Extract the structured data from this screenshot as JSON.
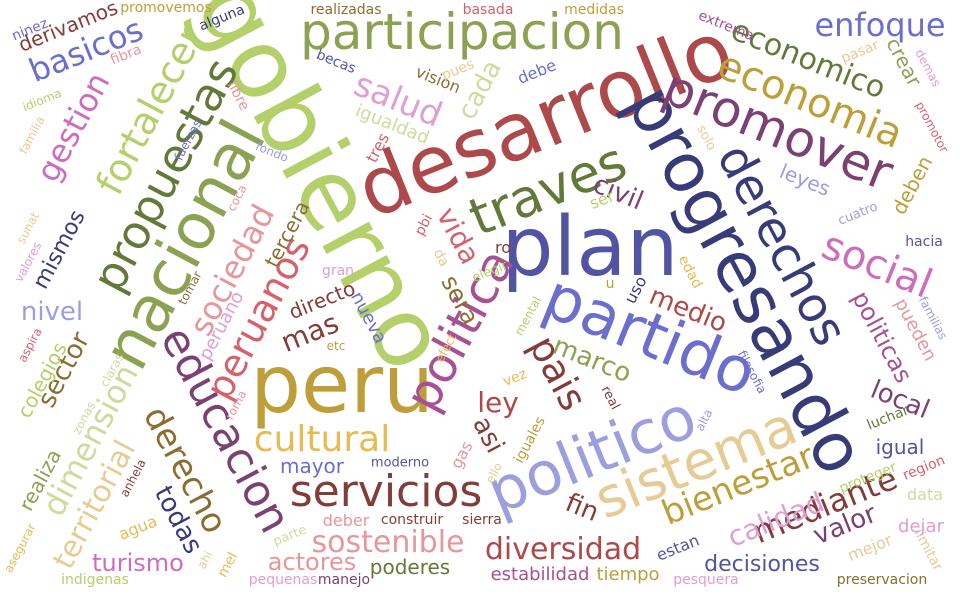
{
  "word_cloud": {
    "words": [
      {
        "text": "gobierno",
        "color": "#b5cf6b"
      },
      {
        "text": "desarrollo",
        "color": "#ad494a"
      },
      {
        "text": "plan",
        "color": "#5254a3"
      },
      {
        "text": "peru",
        "color": "#bd9e39"
      },
      {
        "text": "progresando",
        "color": "#393b79"
      },
      {
        "text": "nacional",
        "color": "#8ca252"
      },
      {
        "text": "politico",
        "color": "#9c9ede"
      },
      {
        "text": "partido",
        "color": "#6b6ecf"
      },
      {
        "text": "participacion",
        "color": "#8ca252"
      },
      {
        "text": "sistema",
        "color": "#e7cb94"
      },
      {
        "text": "derechos",
        "color": "#393b79"
      },
      {
        "text": "traves",
        "color": "#637939"
      },
      {
        "text": "promover",
        "color": "#7b4173"
      },
      {
        "text": "educacion",
        "color": "#7b4173"
      },
      {
        "text": "politica",
        "color": "#a55194"
      },
      {
        "text": "servicios",
        "color": "#843c39"
      },
      {
        "text": "propuestas",
        "color": "#637939"
      },
      {
        "text": "economia",
        "color": "#bd9e39"
      },
      {
        "text": "social",
        "color": "#ce6dbd"
      },
      {
        "text": "economico",
        "color": "#637939"
      },
      {
        "text": "fortalecer",
        "color": "#b5cf6b"
      },
      {
        "text": "cultural",
        "color": "#e7ba52"
      },
      {
        "text": "sociedad",
        "color": "#e7969c"
      },
      {
        "text": "derecho",
        "color": "#8c6d31"
      },
      {
        "text": "enfoque",
        "color": "#6b6ecf"
      },
      {
        "text": "bienestar",
        "color": "#bd9e39"
      },
      {
        "text": "peruanos",
        "color": "#d6616b"
      },
      {
        "text": "pais",
        "color": "#843c39"
      },
      {
        "text": "diversidad",
        "color": "#ad494a"
      },
      {
        "text": "sostenible",
        "color": "#e7969c"
      },
      {
        "text": "dimension",
        "color": "#cedb9c"
      },
      {
        "text": "salud",
        "color": "#de9ed6"
      },
      {
        "text": "mediante",
        "color": "#843c39"
      },
      {
        "text": "basicos",
        "color": "#6b6ecf"
      },
      {
        "text": "gestion",
        "color": "#ce6dbd"
      },
      {
        "text": "territorial",
        "color": "#e7cb94"
      },
      {
        "text": "vida",
        "color": "#d6616b"
      },
      {
        "text": "calidad",
        "color": "#de9ed6"
      },
      {
        "text": "medio",
        "color": "#ad494a"
      },
      {
        "text": "politicas",
        "color": "#a55194"
      },
      {
        "text": "marco",
        "color": "#8ca252"
      },
      {
        "text": "local",
        "color": "#7b4173"
      },
      {
        "text": "cada",
        "color": "#cedb9c"
      },
      {
        "text": "valor",
        "color": "#7b4173"
      },
      {
        "text": "civil",
        "color": "#7b4173"
      },
      {
        "text": "sector",
        "color": "#8c6d31"
      },
      {
        "text": "decisiones",
        "color": "#5254a3"
      },
      {
        "text": "mas",
        "color": "#843c39"
      },
      {
        "text": "ley",
        "color": "#ad494a"
      },
      {
        "text": "todas",
        "color": "#393b79"
      },
      {
        "text": "nivel",
        "color": "#9c9ede"
      },
      {
        "text": "actores",
        "color": "#e7969c"
      },
      {
        "text": "turismo",
        "color": "#ce6dbd"
      },
      {
        "text": "poderes",
        "color": "#637939"
      },
      {
        "text": "mismos",
        "color": "#393b79"
      },
      {
        "text": "sera",
        "color": "#8c6d31"
      },
      {
        "text": "asi",
        "color": "#843c39"
      },
      {
        "text": "mayor",
        "color": "#6b6ecf"
      },
      {
        "text": "estabilidad",
        "color": "#a55194"
      },
      {
        "text": "tiempo",
        "color": "#bd9e39"
      },
      {
        "text": "igual",
        "color": "#5254a3"
      },
      {
        "text": "fin",
        "color": "#843c39"
      },
      {
        "text": "pueden",
        "color": "#e7969c"
      },
      {
        "text": "leyes",
        "color": "#9c9ede"
      },
      {
        "text": "deben",
        "color": "#bd9e39"
      },
      {
        "text": "directo",
        "color": "#843c39"
      },
      {
        "text": "tercera",
        "color": "#8c6d31"
      },
      {
        "text": "peruano",
        "color": "#de9ed6"
      },
      {
        "text": "colegios",
        "color": "#b5cf6b"
      },
      {
        "text": "realiza",
        "color": "#8ca252"
      },
      {
        "text": "nueva",
        "color": "#6b6ecf"
      },
      {
        "text": "crear",
        "color": "#8ca252"
      },
      {
        "text": "derivamos",
        "color": "#843c39"
      },
      {
        "text": "deber",
        "color": "#e7969c"
      },
      {
        "text": "construir",
        "color": "#843c39"
      },
      {
        "text": "sierra",
        "color": "#843c39"
      },
      {
        "text": "manejo",
        "color": "#7b4173"
      },
      {
        "text": "pequenas",
        "color": "#de9ed6"
      },
      {
        "text": "indigenas",
        "color": "#b5cf6b"
      },
      {
        "text": "pesquera",
        "color": "#de9ed6"
      },
      {
        "text": "preservacion",
        "color": "#8c6d31"
      },
      {
        "text": "estan",
        "color": "#5254a3"
      },
      {
        "text": "mejor",
        "color": "#e7cb94"
      },
      {
        "text": "limitar",
        "color": "#e7cb94"
      },
      {
        "text": "dejar",
        "color": "#de9ed6"
      },
      {
        "text": "data",
        "color": "#cedb9c"
      },
      {
        "text": "region",
        "color": "#d6616b"
      },
      {
        "text": "proteger",
        "color": "#b5cf6b"
      },
      {
        "text": "luchar",
        "color": "#637939"
      },
      {
        "text": "alta",
        "color": "#9c9ede"
      },
      {
        "text": "filosofia",
        "color": "#6b6ecf"
      },
      {
        "text": "real",
        "color": "#843c39"
      },
      {
        "text": "iguales",
        "color": "#bd9e39"
      },
      {
        "text": "ello",
        "color": "#e7cb94"
      },
      {
        "text": "gas",
        "color": "#e7969c"
      },
      {
        "text": "agua",
        "color": "#e7ba52"
      },
      {
        "text": "anhela",
        "color": "#843c39"
      },
      {
        "text": "zonas",
        "color": "#cedb9c"
      },
      {
        "text": "claras",
        "color": "#cedb9c"
      },
      {
        "text": "aspira",
        "color": "#d6616b"
      },
      {
        "text": "valores",
        "color": "#de9ed6"
      },
      {
        "text": "sunat",
        "color": "#e7cb94"
      },
      {
        "text": "tomar",
        "color": "#8c6d31"
      },
      {
        "text": "coca",
        "color": "#e7969c"
      },
      {
        "text": "fuerzas",
        "color": "#6b6ecf"
      },
      {
        "text": "fondo",
        "color": "#9c9ede"
      },
      {
        "text": "familia",
        "color": "#e7cb94"
      },
      {
        "text": "idioma",
        "color": "#b5cf6b"
      },
      {
        "text": "fibra",
        "color": "#e7969c"
      },
      {
        "text": "ninez",
        "color": "#6b6ecf"
      },
      {
        "text": "promovemos",
        "color": "#bd9e39"
      },
      {
        "text": "alguna",
        "color": "#393b79"
      },
      {
        "text": "realizadas",
        "color": "#8c6d31"
      },
      {
        "text": "basada",
        "color": "#d6616b"
      },
      {
        "text": "medidas",
        "color": "#bd9e39"
      },
      {
        "text": "extrema",
        "color": "#a55194"
      },
      {
        "text": "pasar",
        "color": "#e7cb94"
      },
      {
        "text": "demas",
        "color": "#de9ed6"
      },
      {
        "text": "promotor",
        "color": "#d6616b"
      },
      {
        "text": "solo",
        "color": "#e7cb94"
      },
      {
        "text": "cuatro",
        "color": "#9c9ede"
      },
      {
        "text": "hacia",
        "color": "#5254a3"
      },
      {
        "text": "familias",
        "color": "#9c9ede"
      },
      {
        "text": "becas",
        "color": "#5254a3"
      },
      {
        "text": "vision",
        "color": "#8c6d31"
      },
      {
        "text": "pues",
        "color": "#e7cb94"
      },
      {
        "text": "debe",
        "color": "#6b6ecf"
      },
      {
        "text": "igualdad",
        "color": "#cedb9c"
      },
      {
        "text": "tres",
        "color": "#d6616b"
      },
      {
        "text": "libre",
        "color": "#e7969c"
      },
      {
        "text": "ser",
        "color": "#b5cf6b"
      },
      {
        "text": "pbi",
        "color": "#d6616b"
      },
      {
        "text": "da",
        "color": "#e7cb94"
      },
      {
        "text": "gran",
        "color": "#de9ed6"
      },
      {
        "text": "elegir",
        "color": "#b5cf6b"
      },
      {
        "text": "ro",
        "color": "#843c39"
      },
      {
        "text": "uso",
        "color": "#393b79"
      },
      {
        "text": "edad",
        "color": "#e7ba52"
      },
      {
        "text": "u",
        "color": "#bd9e39"
      },
      {
        "text": "etc",
        "color": "#bd9e39"
      },
      {
        "text": "vez",
        "color": "#e7ba52"
      },
      {
        "text": "moderno",
        "color": "#5254a3"
      },
      {
        "text": "parte",
        "color": "#cedb9c"
      },
      {
        "text": "ahi",
        "color": "#e7cb94"
      },
      {
        "text": "mel",
        "color": "#e7ba52"
      },
      {
        "text": "asegurar",
        "color": "#e7ba52"
      },
      {
        "text": "roma",
        "color": "#e7969c"
      },
      {
        "text": "mental",
        "color": "#b5cf6b"
      },
      {
        "text": "efect",
        "color": "#e7ba52"
      }
    ]
  }
}
